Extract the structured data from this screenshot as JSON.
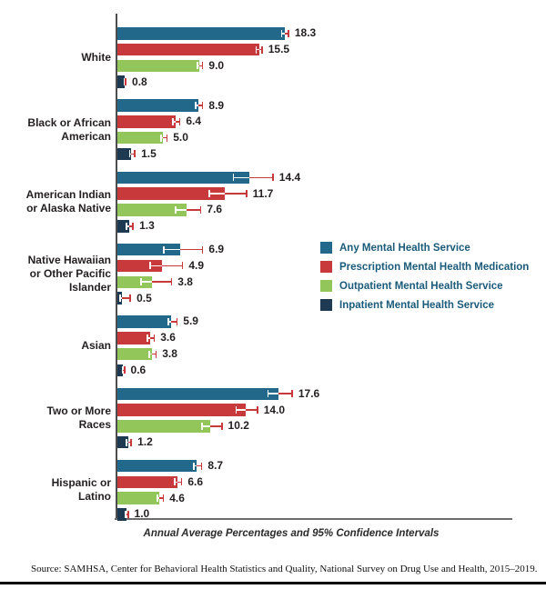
{
  "page": {
    "source": "Source: SAMHSA, Center for Behavioral Health Statistics and Quality, National Survey on Drug Use and Health, 2015–2019."
  },
  "colors": {
    "axis_line": "#4d4e50",
    "baseline": "#6a6c6e",
    "text": "#231f20",
    "legend_text": "#1a5a7a",
    "error_outer": "#c8393b",
    "error_inner": "#ffffff"
  },
  "chart_data": {
    "type": "bar",
    "orientation": "horizontal",
    "title": "",
    "xlabel": "Annual Average Percentages and 95% Confidence Intervals",
    "ylabel": "",
    "xlim": [
      0,
      43.5
    ],
    "grid": false,
    "legend_position": "right-middle",
    "error_bars": "95% confidence intervals",
    "categories": [
      "White",
      "Black or African American",
      "American Indian or Alaska Native",
      "Native Hawaiian or Other Pacific Islander",
      "Asian",
      "Two or More Races",
      "Hispanic or Latino"
    ],
    "category_label_lines": [
      [
        "White"
      ],
      [
        "Black or African",
        "American"
      ],
      [
        "American Indian",
        "or Alaska Native"
      ],
      [
        "Native Hawaiian",
        "or Other Pacific",
        "Islander"
      ],
      [
        "Asian"
      ],
      [
        "Two or More",
        "Races"
      ],
      [
        "Hispanic or",
        "Latino"
      ]
    ],
    "series": [
      {
        "name": "Any Mental Health Service",
        "color": "#21688a",
        "values": [
          18.3,
          8.9,
          14.4,
          6.9,
          5.9,
          17.6,
          8.7
        ],
        "ci_low": [
          17.9,
          8.5,
          12.6,
          5.0,
          5.5,
          16.4,
          8.3
        ],
        "ci_high": [
          18.8,
          9.4,
          17.1,
          9.4,
          6.6,
          19.2,
          9.3
        ]
      },
      {
        "name": "Prescription Mental Health Medication",
        "color": "#c8393b",
        "values": [
          15.5,
          6.4,
          11.7,
          4.9,
          3.6,
          14.0,
          6.6
        ],
        "ci_low": [
          15.1,
          6.0,
          10.0,
          3.5,
          3.2,
          12.9,
          6.2
        ],
        "ci_high": [
          15.9,
          6.9,
          14.2,
          7.2,
          4.1,
          15.4,
          7.1
        ]
      },
      {
        "name": "Outpatient Mental Health Service",
        "color": "#92c65b",
        "values": [
          9.0,
          5.0,
          7.6,
          3.8,
          3.8,
          10.2,
          4.6
        ],
        "ci_low": [
          8.7,
          4.7,
          6.3,
          2.5,
          3.4,
          9.2,
          4.3
        ],
        "ci_high": [
          9.4,
          5.5,
          9.2,
          6.0,
          4.3,
          11.5,
          5.1
        ]
      },
      {
        "name": "Inpatient Mental Health Service",
        "color": "#1d3a52",
        "values": [
          0.8,
          1.5,
          1.3,
          0.5,
          0.6,
          1.2,
          1.0
        ],
        "ci_low": [
          0.65,
          1.25,
          0.9,
          0.2,
          0.45,
          0.9,
          0.8
        ],
        "ci_high": [
          1.0,
          2.0,
          1.8,
          1.5,
          0.85,
          1.6,
          1.25
        ]
      }
    ]
  }
}
